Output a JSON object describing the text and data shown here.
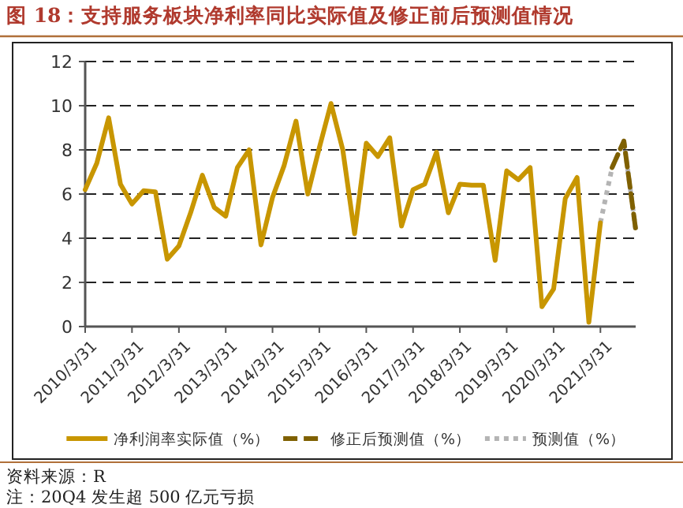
{
  "chart_data": {
    "type": "line",
    "title": "图 18：支持服务板块净利率同比实际值及修正前后预测值情况",
    "x": [
      "2010-03-31",
      "2010-06-30",
      "2010-09-30",
      "2010-12-31",
      "2011-03-31",
      "2011-06-30",
      "2011-09-30",
      "2011-12-31",
      "2012-03-31",
      "2012-06-30",
      "2012-09-30",
      "2012-12-31",
      "2013-03-31",
      "2013-06-30",
      "2013-09-30",
      "2013-12-31",
      "2014-03-31",
      "2014-06-30",
      "2014-09-30",
      "2014-12-31",
      "2015-03-31",
      "2015-06-30",
      "2015-09-30",
      "2015-12-31",
      "2016-03-31",
      "2016-06-30",
      "2016-09-30",
      "2016-12-31",
      "2017-03-31",
      "2017-06-30",
      "2017-09-30",
      "2017-12-31",
      "2018-03-31",
      "2018-06-30",
      "2018-09-30",
      "2018-12-31",
      "2019-03-31",
      "2019-06-30",
      "2019-09-30",
      "2019-12-31",
      "2020-03-31",
      "2020-06-30",
      "2020-09-30",
      "2020-12-31",
      "2021-03-31",
      "2021-06-30",
      "2021-09-30",
      "2021-12-31"
    ],
    "xlim": [
      "2010-03-31",
      "2021-12-31"
    ],
    "xticks": [
      {
        "value": "2010-03-31",
        "label": "2010/3/31"
      },
      {
        "value": "2011-03-31",
        "label": "2011/3/31"
      },
      {
        "value": "2012-03-31",
        "label": "2012/3/31"
      },
      {
        "value": "2013-03-31",
        "label": "2013/3/31"
      },
      {
        "value": "2014-03-31",
        "label": "2014/3/31"
      },
      {
        "value": "2015-03-31",
        "label": "2015/3/31"
      },
      {
        "value": "2016-03-31",
        "label": "2016/3/31"
      },
      {
        "value": "2017-03-31",
        "label": "2017/3/31"
      },
      {
        "value": "2018-03-31",
        "label": "2018/3/31"
      },
      {
        "value": "2019-03-31",
        "label": "2019/3/31"
      },
      {
        "value": "2020-03-31",
        "label": "2020/3/31"
      },
      {
        "value": "2021-03-31",
        "label": "2021/3/31"
      }
    ],
    "series": [
      {
        "name": "净利润率实际值（%）",
        "color": "#c89600",
        "line_style": "solid",
        "values": [
          6.2,
          7.4,
          9.45,
          6.45,
          5.55,
          6.15,
          6.1,
          3.05,
          3.65,
          5.15,
          6.85,
          5.4,
          5.0,
          7.2,
          8.0,
          3.7,
          5.85,
          7.3,
          9.3,
          6.0,
          8.1,
          10.1,
          8.0,
          4.2,
          8.3,
          7.7,
          8.55,
          4.55,
          6.2,
          6.45,
          7.9,
          5.15,
          6.45,
          6.4,
          6.4,
          3.0,
          7.05,
          6.65,
          7.2,
          0.9,
          1.7,
          5.8,
          6.75,
          0.2,
          4.7,
          null,
          null,
          null
        ]
      },
      {
        "name": "修正后预测值（%）",
        "color": "#7f6000",
        "line_style": "dashed",
        "values": [
          null,
          null,
          null,
          null,
          null,
          null,
          null,
          null,
          null,
          null,
          null,
          null,
          null,
          null,
          null,
          null,
          null,
          null,
          null,
          null,
          null,
          null,
          null,
          null,
          null,
          null,
          null,
          null,
          null,
          null,
          null,
          null,
          null,
          null,
          null,
          null,
          null,
          null,
          null,
          null,
          null,
          null,
          null,
          null,
          null,
          7.2,
          8.4,
          4.4
        ]
      },
      {
        "name": "预测值（%）",
        "color": "#b4b4b4",
        "line_style": "dotted",
        "values": [
          null,
          null,
          null,
          null,
          null,
          null,
          null,
          null,
          null,
          null,
          null,
          null,
          null,
          null,
          null,
          null,
          null,
          null,
          null,
          null,
          null,
          null,
          null,
          null,
          null,
          null,
          null,
          null,
          null,
          null,
          null,
          null,
          null,
          null,
          null,
          null,
          null,
          null,
          null,
          null,
          null,
          null,
          null,
          null,
          4.7,
          7.2,
          8.4,
          4.4
        ]
      }
    ],
    "ylim": [
      0,
      12
    ],
    "yticks": [
      0,
      2,
      4,
      6,
      8,
      10,
      12
    ],
    "grid": "y",
    "legend": "bottom",
    "marker": "none",
    "annotations": [
      "资料来源：R",
      "注：20Q4 发生超 500 亿元亏损"
    ]
  }
}
